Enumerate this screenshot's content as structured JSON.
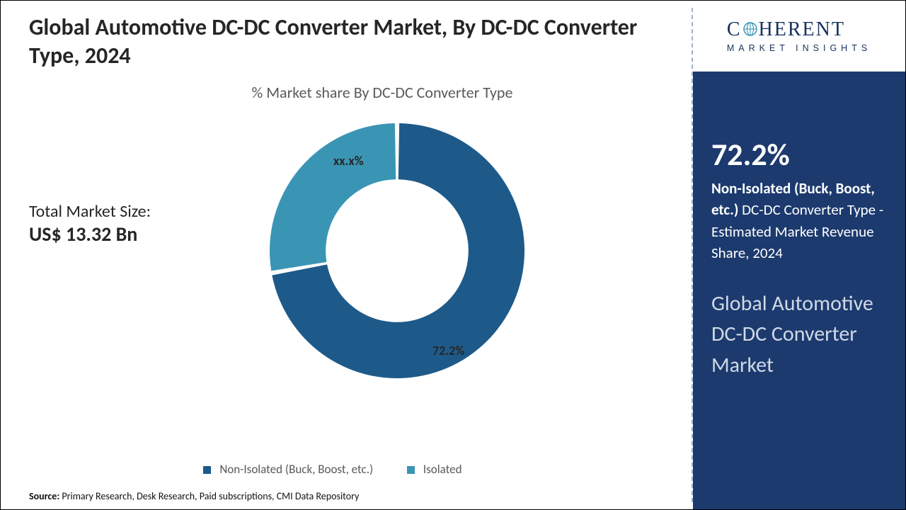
{
  "title": "Global Automotive DC-DC Converter Market, By DC-DC Converter Type, 2024",
  "subtitle": "% Market share By DC-DC Converter Type",
  "total_market_label": "Total Market Size:",
  "total_market_value": "US$ 13.32 Bn",
  "chart": {
    "type": "donut",
    "background_color": "#ffffff",
    "inner_radius_ratio": 0.56,
    "outer_radius": 180,
    "start_angle_deg": 0,
    "gap_deg": 2,
    "slices": [
      {
        "name": "Non-Isolated (Buck, Boost, etc.)",
        "value": 72.2,
        "label": "72.2%",
        "color": "#1d5a8a"
      },
      {
        "name": "Isolated",
        "value": 27.8,
        "label": "xx.x%",
        "color": "#3a95b5"
      }
    ],
    "label_fontsize": 18,
    "label_color": "#262626",
    "legend_fontsize": 17,
    "legend_color": "#595959"
  },
  "source_label": "Source:",
  "source_text": " Primary Research, Desk Research, Paid subscriptions, CMI Data Repository",
  "logo": {
    "text_top": "COHERENT",
    "text_bottom": "MARKET INSIGHTS",
    "color": "#15315d"
  },
  "panel": {
    "bg_color": "#1c3a6e",
    "pct": "72.2%",
    "desc_bold": "Non-Isolated (Buck, Boost, etc.)",
    "desc_rest": " DC-DC Converter Type - Estimated Market Revenue Share, 2024",
    "market_name": "Global Automotive DC-DC Converter Market"
  }
}
